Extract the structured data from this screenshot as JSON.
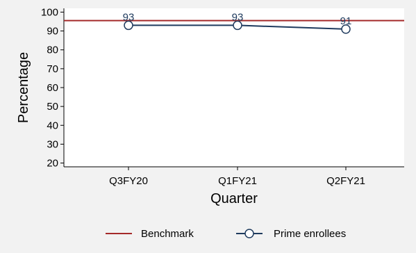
{
  "chart_data": {
    "type": "line",
    "xlabel": "Quarter",
    "ylabel": "Percentage",
    "ylim": [
      18,
      102
    ],
    "yticks": [
      20,
      30,
      40,
      50,
      60,
      70,
      80,
      90,
      100
    ],
    "categories": [
      "Q3FY20",
      "Q1FY21",
      "Q2FY21"
    ],
    "series": [
      {
        "name": "Prime enrollees",
        "values": [
          93,
          93,
          91
        ],
        "color": "#1f3b5e",
        "marker": "open-circle"
      }
    ],
    "benchmark": {
      "name": "Benchmark",
      "value": 95.5,
      "color": "#a52a2a"
    },
    "data_labels": [
      "93",
      "93",
      "91"
    ],
    "legend_position": "bottom",
    "grid": false
  }
}
